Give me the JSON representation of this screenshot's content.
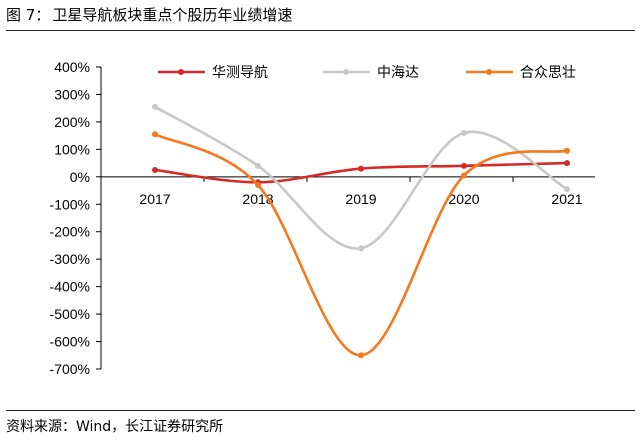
{
  "figure": {
    "label": "图 7：",
    "title": "卫星导航板块重点个股历年业绩增速",
    "source": "资料来源：Wind，长江证券研究所"
  },
  "chart_data": {
    "type": "line",
    "categories": [
      "2017",
      "2018",
      "2019",
      "2020",
      "2021"
    ],
    "series": [
      {
        "name": "华测导航",
        "color": "#d42a2a",
        "values": [
          25,
          -20,
          30,
          40,
          50
        ]
      },
      {
        "name": "中海达",
        "color": "#c8c8c8",
        "values": [
          255,
          40,
          -260,
          160,
          -45
        ]
      },
      {
        "name": "合众思壮",
        "color": "#f5781e",
        "values": [
          155,
          -30,
          -650,
          5,
          95
        ]
      }
    ],
    "ylim": [
      -700,
      400
    ],
    "yticks": [
      400,
      300,
      200,
      100,
      0,
      -100,
      -200,
      -300,
      -400,
      -500,
      -600,
      -700
    ],
    "ytick_labels": [
      "400%",
      "300%",
      "200%",
      "100%",
      "0%",
      "-100%",
      "-200%",
      "-300%",
      "-400%",
      "-500%",
      "-600%",
      "-700%"
    ],
    "legend_position": "top",
    "smooth": true,
    "grid": false
  }
}
